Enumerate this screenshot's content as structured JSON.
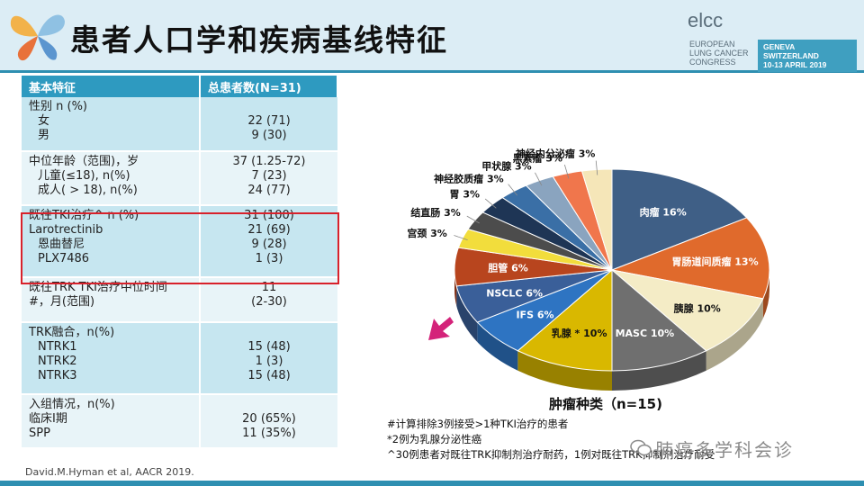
{
  "slide": {
    "title": "患者人口学和疾病基线特征"
  },
  "logo": {
    "wordmark": "elcc",
    "lines": [
      "EUROPEAN",
      "LUNG CANCER",
      "CONGRESS"
    ],
    "badge_line1": "GENEVA SWITZERLAND",
    "badge_line2": "10-13 APRIL 2019"
  },
  "table": {
    "header": [
      "基本特征",
      "总患者数(N=31)"
    ],
    "rows": [
      {
        "label": [
          "性别 n (%)",
          "女",
          "男"
        ],
        "value": [
          "",
          "22 (71)",
          "9 (30)"
        ]
      },
      {
        "label": [
          "中位年龄（范围)，岁",
          "儿童(≤18), n(%)",
          "成人( > 18), n(%)"
        ],
        "value": [
          "37 (1.25-72)",
          "7 (23)",
          "24 (77)"
        ]
      },
      {
        "label": [
          "既往TKI治疗^ n (%)",
          "Larotrectinib",
          "恩曲替尼",
          "PLX7486"
        ],
        "value": [
          "31 (100)",
          "21 (69)",
          "9 (28)",
          "1 (3)"
        ]
      },
      {
        "label": [
          "既往TRK TKI治疗中位时间",
          "#，月(范围)"
        ],
        "value": [
          "11",
          "(2-30)"
        ]
      },
      {
        "label": [
          "TRK融合，n(%)",
          "NTRK1",
          "NTRK2",
          "NTRK3"
        ],
        "value": [
          "",
          "15 (48)",
          "1 (3)",
          "15 (48)"
        ]
      },
      {
        "label": [
          "入组情况，n(%)",
          "临床I期",
          "SPP"
        ],
        "value": [
          "",
          "20 (65%)",
          "11 (35%)"
        ]
      }
    ]
  },
  "citation": "David.M.Hyman et al, AACR 2019.",
  "chart_data": {
    "type": "pie",
    "title": "肿瘤种类（n=15)",
    "slices": [
      {
        "label": "肉瘤",
        "pct_label": "16%",
        "value": 16,
        "color": "#3f5f86"
      },
      {
        "label": "胃肠道间质瘤",
        "pct_label": "13%",
        "value": 13,
        "color": "#e06a2c"
      },
      {
        "label": "胰腺",
        "pct_label": "10%",
        "value": 10,
        "color": "#f4ecc6"
      },
      {
        "label": "MASC",
        "pct_label": "10%",
        "value": 10,
        "color": "#6f6f6f"
      },
      {
        "label": "乳腺",
        "pct_label": "* 10%",
        "value": 10,
        "color": "#d9b800"
      },
      {
        "label": "IFS",
        "pct_label": "6%",
        "value": 6,
        "color": "#2e74c2"
      },
      {
        "label": "NSCLC",
        "pct_label": "6%",
        "value": 6,
        "color": "#3a5f99"
      },
      {
        "label": "胆管",
        "pct_label": "6%",
        "value": 6,
        "color": "#b8451e"
      },
      {
        "label": "宫颈",
        "pct_label": "3%",
        "value": 3,
        "color": "#f2dd3c"
      },
      {
        "label": "结直肠",
        "pct_label": "3%",
        "value": 3,
        "color": "#4c4c4c"
      },
      {
        "label": "胃",
        "pct_label": "3%",
        "value": 3,
        "color": "#1e3555"
      },
      {
        "label": "神经胶质瘤",
        "pct_label": "3%",
        "value": 3,
        "color": "#3a6fa6"
      },
      {
        "label": "甲状腺",
        "pct_label": "3%",
        "value": 3,
        "color": "#8aa4bf"
      },
      {
        "label": "黑素瘤",
        "pct_label": "3%",
        "value": 3,
        "color": "#f0764c"
      },
      {
        "label": "神经内分泌瘤",
        "pct_label": "3%",
        "value": 3,
        "color": "#f5e6b8"
      }
    ]
  },
  "notes": [
    "#计算排除3例接受>1种TKI治疗的患者",
    "*2例为乳腺分泌性癌",
    "^30例患者对既往TRK抑制剂治疗耐药，1例对既往TRK抑制剂治疗耐受"
  ],
  "watermark": "肺癌多学科会诊",
  "colors": {
    "header_bg": "#dcedf5",
    "accent": "#2e8fb1",
    "table_header": "#2e9ac0",
    "highlight": "#d8212b",
    "arrow": "#d4237a"
  }
}
